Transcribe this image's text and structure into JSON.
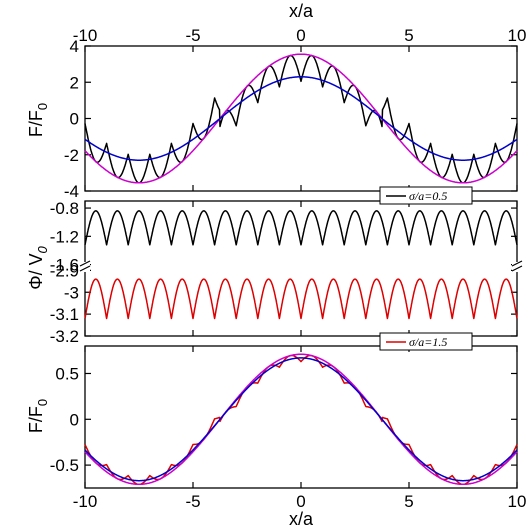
{
  "chart_data": [
    {
      "type": "line",
      "panel": "top",
      "ylabel": "F/F0",
      "xlabel": "x/a",
      "xlim": [
        -10,
        10
      ],
      "ylim": [
        -4,
        4
      ],
      "xticks": [
        -10,
        -5,
        0,
        5,
        10
      ],
      "yticks": [
        -4,
        -2,
        0,
        2,
        4
      ],
      "x_label_position": "top",
      "period": 15,
      "lattice_spacing": 1,
      "series": [
        {
          "color": "#000000",
          "style": "cusped periodic force",
          "x_start": -10,
          "x_end": 10,
          "envelope_amplitude": 3.55,
          "cusp_depth": 0.75
        },
        {
          "color": "#cc00cc",
          "style": "smooth",
          "shape": "cosine",
          "amplitude": 3.55
        },
        {
          "color": "#0000cc",
          "style": "smooth",
          "shape": "cosine",
          "amplitude": 2.3
        }
      ]
    },
    {
      "type": "line",
      "panel": "middle",
      "ylabel": "Φ/ V0",
      "xlim": [
        -10,
        10
      ],
      "broken_axis": true,
      "upper": {
        "ylim": [
          -1.62,
          -0.7
        ],
        "yticks": [
          -0.8,
          -1.2,
          -1.6
        ],
        "series": [
          {
            "name": "σ/a=0.5",
            "color": "#000000",
            "period": 1,
            "cusp_min": -1.32,
            "arch_max": -0.84
          }
        ]
      },
      "lower": {
        "ylim": [
          -3.2,
          -2.88
        ],
        "yticks": [
          -2.9,
          -3,
          -3.1,
          -3.2
        ],
        "series": [
          {
            "name": "σ/a=1.5",
            "color": "#dd0000",
            "period": 1,
            "cusp_min": -3.12,
            "arch_max": -2.94
          }
        ]
      },
      "legend": [
        {
          "label": "σ/a=0.5",
          "color": "#000000",
          "placement": "top-right"
        },
        {
          "label": "σ/a=1.5",
          "color": "#dd0000",
          "placement": "bottom-right"
        }
      ]
    },
    {
      "type": "line",
      "panel": "bottom",
      "ylabel": "F/F0",
      "xlabel": "x/a",
      "xlim": [
        -10,
        10
      ],
      "ylim": [
        -0.75,
        0.8
      ],
      "xticks": [
        -10,
        -5,
        0,
        5,
        10
      ],
      "yticks": [
        -0.5,
        0,
        0.5
      ],
      "period": 15,
      "lattice_spacing": 1,
      "series": [
        {
          "color": "#dd0000",
          "style": "cusped periodic force",
          "envelope_amplitude": 0.71,
          "cusp_depth": 0.04
        },
        {
          "color": "#cc00cc",
          "style": "smooth",
          "shape": "cosine",
          "amplitude": 0.71
        },
        {
          "color": "#0000cc",
          "style": "smooth",
          "shape": "cosine",
          "amplitude": 0.67
        }
      ]
    }
  ],
  "labels": {
    "top_xlabel": "x/a",
    "bottom_xlabel": "x/a",
    "top_ylabel_main": "F/F",
    "top_ylabel_sub": "0",
    "mid_ylabel_main": "Φ/ V",
    "mid_ylabel_sub": "0",
    "bot_ylabel_main": "F/F",
    "bot_ylabel_sub": "0",
    "legend_1": "σ/a=0.5",
    "legend_2": "σ/a=1.5"
  }
}
